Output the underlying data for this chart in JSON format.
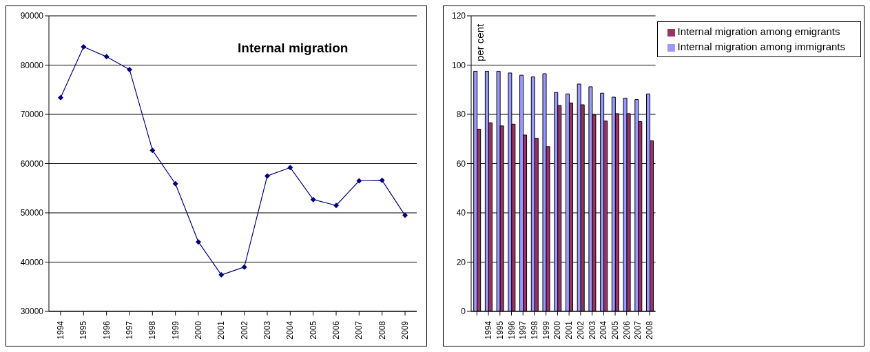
{
  "chart_data": [
    {
      "type": "line",
      "title": "Internal migration",
      "categories": [
        "1994",
        "1995",
        "1996",
        "1997",
        "1998",
        "1999",
        "2000",
        "2001",
        "2002",
        "2003",
        "2004",
        "2005",
        "2006",
        "2007",
        "2008",
        "2009"
      ],
      "series": [
        {
          "color": "#000080",
          "values": [
            73400,
            83700,
            81700,
            79100,
            62700,
            55900,
            44100,
            37400,
            39000,
            57500,
            59200,
            52700,
            51500,
            56500,
            56600,
            49500
          ]
        }
      ],
      "ylim": [
        30000,
        90000
      ],
      "yticks": [
        30000,
        40000,
        50000,
        60000,
        70000,
        80000,
        90000
      ],
      "grid": "y",
      "marker": "diamond",
      "legend": false
    },
    {
      "type": "bar",
      "ylabel": "per cent",
      "categories": [
        null,
        "1994",
        "1995",
        "1996",
        "1997",
        "1998",
        "1999",
        "2000",
        "2001",
        "2002",
        "2003",
        "2004",
        "2005",
        "2006",
        "2007",
        "2008"
      ],
      "series": [
        {
          "name": "Internal migration among immigrants",
          "color": "#9999ff",
          "values": [
            97.5,
            97.5,
            97.5,
            96.8,
            95.9,
            95.2,
            96.5,
            88.9,
            88.3,
            92.3,
            91.2,
            88.6,
            87.0,
            86.6,
            86.0,
            88.3
          ]
        },
        {
          "name": "Internal migration among emigrants",
          "color": "#993366",
          "values": [
            74.0,
            76.6,
            75.3,
            76.0,
            71.6,
            70.3,
            66.9,
            83.6,
            84.6,
            83.9,
            79.8,
            77.3,
            80.3,
            80.3,
            77.1,
            69.3
          ]
        }
      ],
      "ylim": [
        0,
        120
      ],
      "yticks": [
        0,
        20,
        40,
        60,
        80,
        100,
        120
      ],
      "grid": "y",
      "legend": "top right"
    }
  ]
}
